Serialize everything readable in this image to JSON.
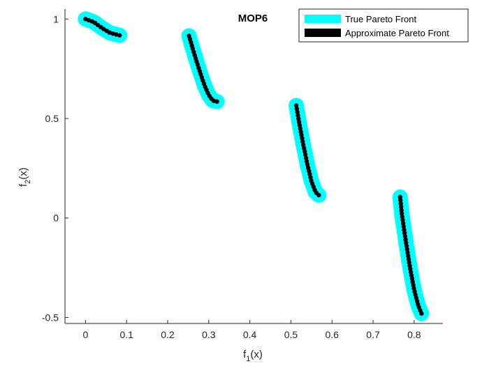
{
  "chart_data": {
    "type": "line",
    "title": "MOP6",
    "xlabel_main": "f",
    "xlabel_sub": "1",
    "xlabel_tail": "(x)",
    "ylabel_main": "f",
    "ylabel_sub": "2",
    "ylabel_tail": "(x)",
    "xlim": [
      -0.05,
      0.87
    ],
    "ylim": [
      -0.53,
      1.05
    ],
    "xticks": [
      0,
      0.1,
      0.2,
      0.3,
      0.4,
      0.5,
      0.6,
      0.7,
      0.8
    ],
    "xtick_labels": [
      "0",
      "0.1",
      "0.2",
      "0.3",
      "0.4",
      "0.5",
      "0.6",
      "0.7",
      "0.8"
    ],
    "yticks": [
      -0.5,
      0,
      0.5,
      1
    ],
    "ytick_labels": [
      "-0.5",
      "0",
      "0.5",
      "1"
    ],
    "grid": false,
    "legend_position": "top-right",
    "legend": {
      "true_front": "True Pareto Front",
      "approx_front": "Approximate Pareto Front"
    },
    "colors": {
      "true_front": "#00ffff",
      "approx_front": "#000000"
    },
    "segments": [
      {
        "x": [
          0.0,
          0.02,
          0.04,
          0.06,
          0.083
        ],
        "y": [
          1.0,
          0.985,
          0.955,
          0.93,
          0.918
        ]
      },
      {
        "x": [
          0.252,
          0.26,
          0.27,
          0.28,
          0.29,
          0.3,
          0.31,
          0.32
        ],
        "y": [
          0.915,
          0.858,
          0.79,
          0.725,
          0.665,
          0.618,
          0.59,
          0.585
        ]
      },
      {
        "x": [
          0.513,
          0.52,
          0.53,
          0.54,
          0.55,
          0.56,
          0.568
        ],
        "y": [
          0.565,
          0.48,
          0.37,
          0.27,
          0.185,
          0.13,
          0.115
        ]
      },
      {
        "x": [
          0.766,
          0.77,
          0.78,
          0.79,
          0.8,
          0.81,
          0.818
        ],
        "y": [
          0.105,
          0.02,
          -0.12,
          -0.25,
          -0.36,
          -0.44,
          -0.48
        ]
      }
    ]
  }
}
